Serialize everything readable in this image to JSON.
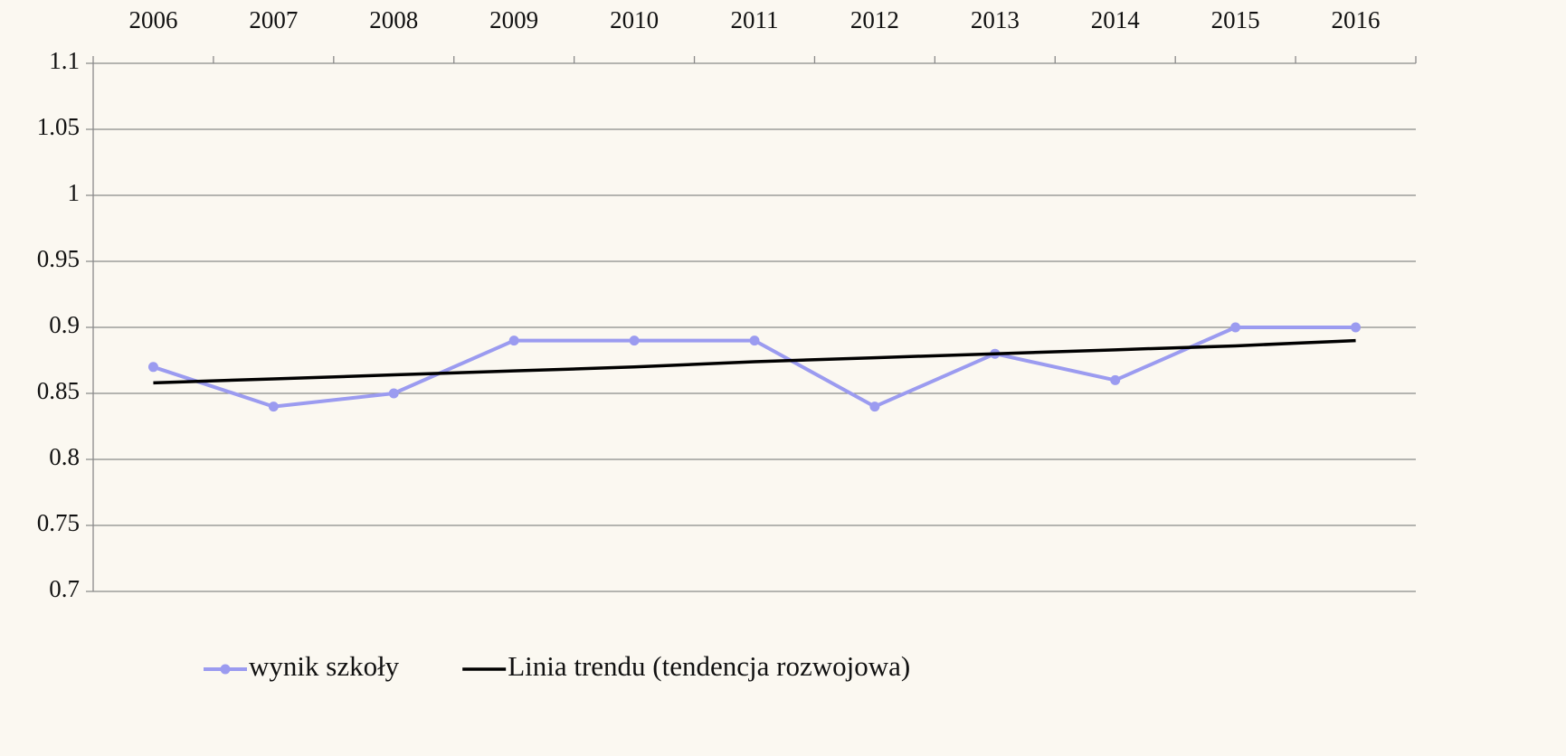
{
  "chart_data": {
    "type": "line",
    "categories": [
      "2006",
      "2007",
      "2008",
      "2009",
      "2010",
      "2011",
      "2012",
      "2013",
      "2014",
      "2015",
      "2016"
    ],
    "series": [
      {
        "name": "wynik szkoły",
        "color": "#9b9bf0",
        "marker": true,
        "values": [
          0.87,
          0.84,
          0.85,
          0.89,
          0.89,
          0.89,
          0.84,
          0.88,
          0.86,
          0.9,
          0.9
        ]
      },
      {
        "name": "Linia trendu (tendencja rozwojowa)",
        "color": "#000000",
        "marker": false,
        "values": [
          0.858,
          0.861,
          0.864,
          0.867,
          0.87,
          0.874,
          0.877,
          0.88,
          0.883,
          0.886,
          0.89
        ]
      }
    ],
    "ylim": [
      0.7,
      1.1
    ],
    "yticks": [
      0.7,
      0.75,
      0.8,
      0.85,
      0.9,
      0.95,
      1,
      1.05,
      1.1
    ],
    "grid": true,
    "legend": "bottom",
    "x_axis_position": "top"
  }
}
